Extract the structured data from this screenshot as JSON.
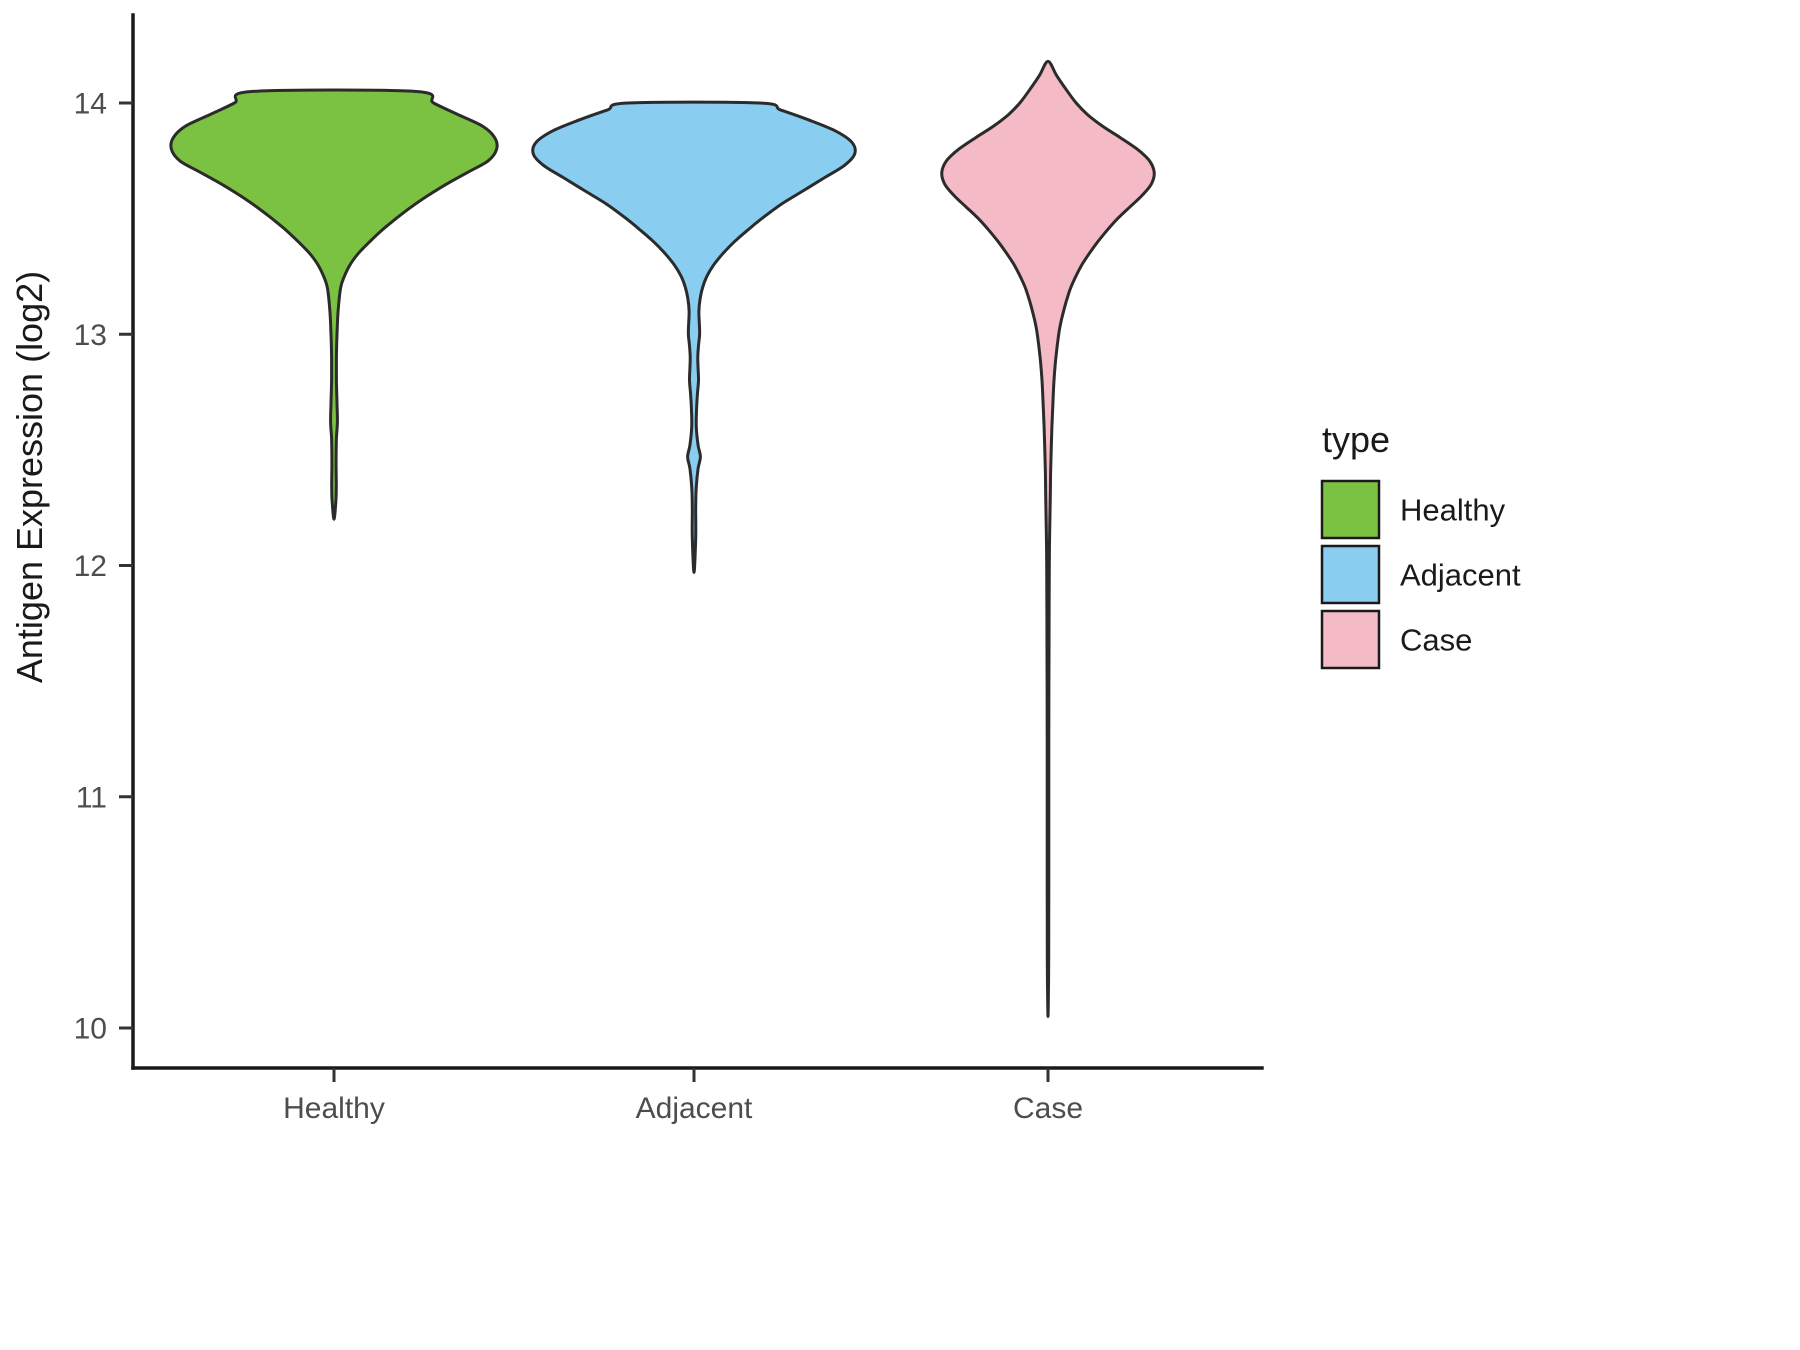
{
  "figure": {
    "background": "#ffffff"
  },
  "axes": {
    "y_label": "Antigen Expression (log2)",
    "y_ticks": [
      "10",
      "11",
      "12",
      "13",
      "14"
    ],
    "x_categories": [
      "Healthy",
      "Adjacent",
      "Case"
    ]
  },
  "legend": {
    "title": "type",
    "items": [
      {
        "label": "Healthy",
        "color": "#7cc242"
      },
      {
        "label": "Adjacent",
        "color": "#89cdf0"
      },
      {
        "label": "Case",
        "color": "#f4bac6"
      }
    ]
  },
  "chart_data": {
    "type": "violin",
    "title": "",
    "xlabel": "",
    "ylabel": "Antigen Expression (log2)",
    "categories": [
      "Healthy",
      "Adjacent",
      "Case"
    ],
    "y_ticks": [
      10,
      11,
      12,
      13,
      14
    ],
    "ylim": [
      9.83,
      14.38
    ],
    "grid": false,
    "legend_position": "right",
    "legend_title": "type",
    "series": [
      {
        "name": "Healthy",
        "color": "#7cc242",
        "y_min": 12.2,
        "y_max": 14.05,
        "widest_at": 13.8,
        "top_shape": "truncated-flat",
        "profile": [
          [
            14.05,
            0.43
          ],
          [
            14.0,
            0.53
          ],
          [
            13.95,
            0.66
          ],
          [
            13.9,
            0.79
          ],
          [
            13.85,
            0.855
          ],
          [
            13.8,
            0.865
          ],
          [
            13.75,
            0.82
          ],
          [
            13.7,
            0.71
          ],
          [
            13.65,
            0.6
          ],
          [
            13.6,
            0.5
          ],
          [
            13.55,
            0.41
          ],
          [
            13.5,
            0.33
          ],
          [
            13.45,
            0.255
          ],
          [
            13.4,
            0.19
          ],
          [
            13.35,
            0.13
          ],
          [
            13.3,
            0.085
          ],
          [
            13.25,
            0.055
          ],
          [
            13.2,
            0.035
          ],
          [
            13.1,
            0.022
          ],
          [
            13.0,
            0.016
          ],
          [
            12.9,
            0.013
          ],
          [
            12.8,
            0.013
          ],
          [
            12.7,
            0.016
          ],
          [
            12.62,
            0.018
          ],
          [
            12.55,
            0.013
          ],
          [
            12.45,
            0.011
          ],
          [
            12.35,
            0.012
          ],
          [
            12.28,
            0.01
          ],
          [
            12.2,
            0.0
          ]
        ]
      },
      {
        "name": "Adjacent",
        "color": "#89cdf0",
        "y_min": 11.97,
        "y_max": 14.0,
        "widest_at": 13.78,
        "top_shape": "truncated-flat",
        "profile": [
          [
            14.0,
            0.35
          ],
          [
            13.97,
            0.46
          ],
          [
            13.93,
            0.6
          ],
          [
            13.88,
            0.75
          ],
          [
            13.83,
            0.84
          ],
          [
            13.78,
            0.855
          ],
          [
            13.73,
            0.8
          ],
          [
            13.68,
            0.7
          ],
          [
            13.62,
            0.58
          ],
          [
            13.56,
            0.46
          ],
          [
            13.5,
            0.36
          ],
          [
            13.45,
            0.285
          ],
          [
            13.4,
            0.215
          ],
          [
            13.35,
            0.155
          ],
          [
            13.3,
            0.105
          ],
          [
            13.25,
            0.068
          ],
          [
            13.2,
            0.045
          ],
          [
            13.15,
            0.032
          ],
          [
            13.1,
            0.026
          ],
          [
            13.05,
            0.028
          ],
          [
            13.0,
            0.03
          ],
          [
            12.95,
            0.024
          ],
          [
            12.9,
            0.02
          ],
          [
            12.85,
            0.022
          ],
          [
            12.8,
            0.024
          ],
          [
            12.74,
            0.018
          ],
          [
            12.68,
            0.014
          ],
          [
            12.6,
            0.012
          ],
          [
            12.52,
            0.022
          ],
          [
            12.47,
            0.034
          ],
          [
            12.42,
            0.022
          ],
          [
            12.34,
            0.012
          ],
          [
            12.25,
            0.009
          ],
          [
            12.12,
            0.009
          ],
          [
            11.97,
            0.0
          ]
        ]
      },
      {
        "name": "Case",
        "color": "#f4bac6",
        "y_min": 10.05,
        "y_max": 14.18,
        "widest_at": 13.7,
        "top_shape": "pointed",
        "profile": [
          [
            14.18,
            0.0
          ],
          [
            14.12,
            0.045
          ],
          [
            14.06,
            0.095
          ],
          [
            14.0,
            0.15
          ],
          [
            13.95,
            0.21
          ],
          [
            13.9,
            0.29
          ],
          [
            13.85,
            0.385
          ],
          [
            13.8,
            0.475
          ],
          [
            13.75,
            0.54
          ],
          [
            13.7,
            0.565
          ],
          [
            13.65,
            0.55
          ],
          [
            13.6,
            0.5
          ],
          [
            13.55,
            0.435
          ],
          [
            13.5,
            0.37
          ],
          [
            13.45,
            0.315
          ],
          [
            13.4,
            0.265
          ],
          [
            13.35,
            0.22
          ],
          [
            13.3,
            0.18
          ],
          [
            13.25,
            0.148
          ],
          [
            13.2,
            0.12
          ],
          [
            13.15,
            0.1
          ],
          [
            13.1,
            0.083
          ],
          [
            13.05,
            0.068
          ],
          [
            13.0,
            0.057
          ],
          [
            12.9,
            0.042
          ],
          [
            12.8,
            0.032
          ],
          [
            12.7,
            0.026
          ],
          [
            12.6,
            0.021
          ],
          [
            12.5,
            0.017
          ],
          [
            12.4,
            0.014
          ],
          [
            12.3,
            0.012
          ],
          [
            12.2,
            0.01
          ],
          [
            12.1,
            0.008
          ],
          [
            12.0,
            0.007
          ],
          [
            11.8,
            0.006
          ],
          [
            11.5,
            0.005
          ],
          [
            11.2,
            0.0045
          ],
          [
            10.9,
            0.004
          ],
          [
            10.6,
            0.004
          ],
          [
            10.3,
            0.0038
          ],
          [
            10.05,
            0.0
          ]
        ]
      }
    ]
  }
}
